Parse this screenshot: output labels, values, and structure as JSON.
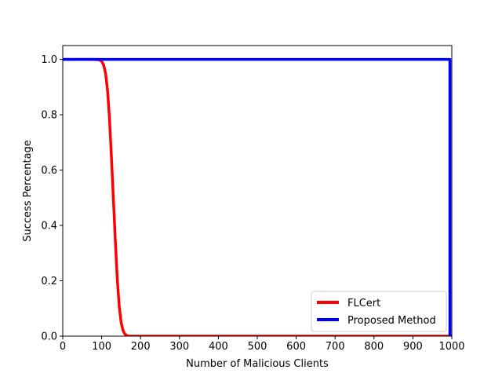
{
  "chart_data": {
    "type": "line",
    "title": "",
    "xlabel": "Number of Malicious Clients",
    "ylabel": "Success Percentage",
    "xlim": [
      0,
      1000
    ],
    "ylim": [
      0,
      1.05
    ],
    "xticks": [
      0,
      100,
      200,
      300,
      400,
      500,
      600,
      700,
      800,
      900,
      1000
    ],
    "xtick_labels": [
      "0",
      "100",
      "200",
      "300",
      "400",
      "500",
      "600",
      "700",
      "800",
      "900",
      "1000"
    ],
    "yticks": [
      0.0,
      0.2,
      0.4,
      0.6,
      0.8,
      1.0
    ],
    "ytick_labels": [
      "0.0",
      "0.2",
      "0.4",
      "0.6",
      "0.8",
      "1.0"
    ],
    "grid": false,
    "legend_position": "lower-right",
    "series": [
      {
        "name": "FLCert",
        "color": "#ff0000",
        "x": [
          0,
          80,
          95,
          100,
          105,
          110,
          115,
          120,
          125,
          130,
          135,
          140,
          145,
          150,
          155,
          160,
          165,
          170,
          180,
          200,
          300,
          400,
          500,
          600,
          700,
          800,
          900,
          1000
        ],
        "y": [
          1.0,
          1.0,
          0.998,
          0.993,
          0.98,
          0.95,
          0.89,
          0.79,
          0.65,
          0.5,
          0.35,
          0.21,
          0.11,
          0.05,
          0.02,
          0.007,
          0.002,
          0.0,
          0.0,
          0.0,
          0.0,
          0.0,
          0.0,
          0.0,
          0.0,
          0.0,
          0.0,
          0.0
        ]
      },
      {
        "name": "Proposed Method",
        "color": "#0000ff",
        "x": [
          0,
          100,
          200,
          300,
          400,
          500,
          600,
          700,
          800,
          900,
          995,
          995,
          1000
        ],
        "y": [
          1.0,
          1.0,
          1.0,
          1.0,
          1.0,
          1.0,
          1.0,
          1.0,
          1.0,
          1.0,
          1.0,
          0.0,
          0.0
        ]
      }
    ]
  }
}
